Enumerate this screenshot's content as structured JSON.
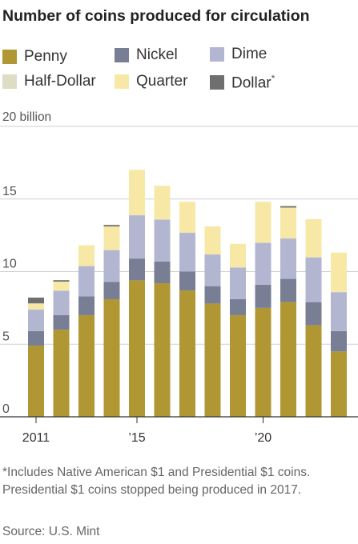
{
  "chart_data": {
    "type": "bar",
    "stacked": true,
    "title": "Number of coins produced for circulation",
    "y_unit_label": "20 billion",
    "ylim": [
      0,
      20
    ],
    "y_ticks": [
      0,
      5,
      10,
      15,
      20
    ],
    "y_tick_labels": [
      "0",
      "5",
      "10",
      "15",
      ""
    ],
    "grid": true,
    "categories": [
      "2011",
      "2012",
      "2013",
      "2014",
      "2015",
      "2016",
      "2017",
      "2018",
      "2019",
      "2020",
      "2021",
      "2022",
      "2023"
    ],
    "x_tick_labels": {
      "2011": "2011",
      "2015": "’15",
      "2020": "’20"
    },
    "series": [
      {
        "name": "Penny",
        "color": "#b09733",
        "values": [
          4.9,
          6.0,
          7.0,
          8.1,
          9.4,
          9.2,
          8.7,
          7.8,
          7.0,
          7.5,
          7.9,
          6.3,
          4.5
        ]
      },
      {
        "name": "Nickel",
        "color": "#787f95",
        "values": [
          1.0,
          1.0,
          1.3,
          1.2,
          1.5,
          1.5,
          1.3,
          1.2,
          1.1,
          1.6,
          1.6,
          1.6,
          1.4
        ]
      },
      {
        "name": "Dime",
        "color": "#b3b6d1",
        "values": [
          1.5,
          1.7,
          2.1,
          2.2,
          3.0,
          2.9,
          2.7,
          2.2,
          2.2,
          2.9,
          2.8,
          3.1,
          2.7
        ]
      },
      {
        "name": "Half-Dollar",
        "color": "#dddcc4",
        "values": [
          0.01,
          0.01,
          0.01,
          0.01,
          0.01,
          0.01,
          0.01,
          0.01,
          0.01,
          0.01,
          0.01,
          0.01,
          0.01
        ]
      },
      {
        "name": "Quarter",
        "color": "#f7e8a6",
        "values": [
          0.4,
          0.6,
          1.4,
          1.6,
          3.1,
          2.3,
          2.1,
          1.9,
          1.6,
          2.8,
          2.1,
          2.6,
          2.7
        ]
      },
      {
        "name": "Dollar",
        "legend_suffix": "*",
        "color": "#6f6f6f",
        "values": [
          0.4,
          0.1,
          0.0,
          0.1,
          0.0,
          0.0,
          0.0,
          0.0,
          0.0,
          0.0,
          0.1,
          0.0,
          0.0
        ]
      }
    ],
    "legend_position": "top"
  },
  "footnote": "*Includes Native American $1 and Presidential $1 coins. Presidential $1 coins stopped being produced in 2017.",
  "source": "Source: U.S. Mint"
}
